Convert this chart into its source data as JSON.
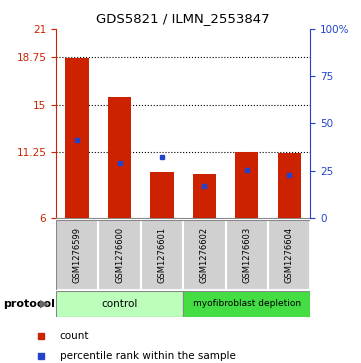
{
  "title": "GDS5821 / ILMN_2553847",
  "samples": [
    "GSM1276599",
    "GSM1276600",
    "GSM1276601",
    "GSM1276602",
    "GSM1276603",
    "GSM1276604"
  ],
  "bar_heights": [
    18.7,
    15.6,
    9.6,
    9.5,
    11.2,
    11.15
  ],
  "bar_bottom": 6.0,
  "percentile_values": [
    12.2,
    10.35,
    10.8,
    8.5,
    9.8,
    9.4
  ],
  "ylim": [
    6,
    21
  ],
  "ylim_right": [
    0,
    100
  ],
  "yticks_left": [
    6,
    11.25,
    15,
    18.75,
    21
  ],
  "yticks_right": [
    0,
    25,
    50,
    75,
    100
  ],
  "ytick_labels_right": [
    "0",
    "25",
    "50",
    "75",
    "100%"
  ],
  "bar_color": "#cc2200",
  "percentile_color": "#2244cc",
  "control_color": "#bbffbb",
  "myofibroblast_color": "#44dd44",
  "sample_box_color": "#d0d0d0",
  "groups": [
    {
      "label": "control",
      "start": 0,
      "end": 3
    },
    {
      "label": "myofibroblast depletion",
      "start": 3,
      "end": 6
    }
  ],
  "protocol_label": "protocol",
  "legend_count_label": "count",
  "legend_percentile_label": "percentile rank within the sample",
  "bg_color": "#ffffff",
  "tick_label_color_left": "#cc2200",
  "tick_label_color_right": "#2244cc"
}
